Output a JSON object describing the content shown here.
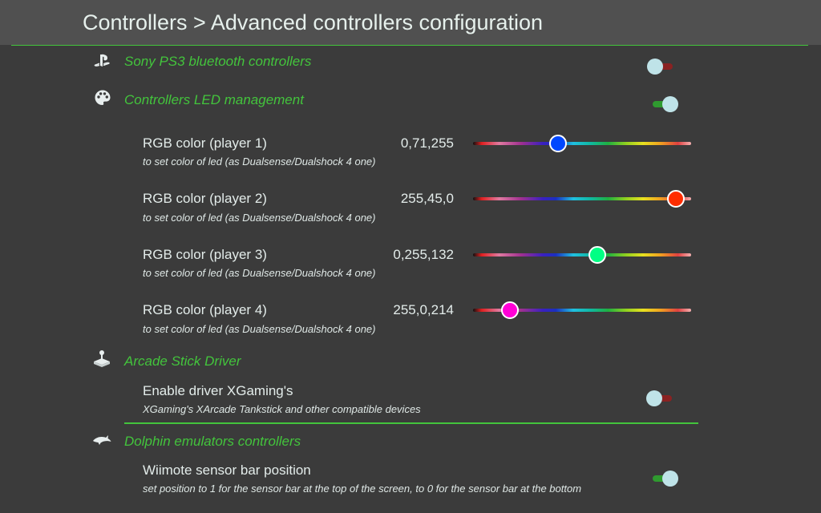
{
  "header": {
    "title": "Controllers > Advanced controllers configuration"
  },
  "sections": {
    "ps3": {
      "title": "Sony PS3 bluetooth controllers",
      "icon": "playstation-icon",
      "toggle": "off"
    },
    "led": {
      "title": "Controllers LED management",
      "icon": "palette-icon",
      "toggle": "on",
      "players": [
        {
          "label": "RGB color (player 1)",
          "value": "0,71,255",
          "desc": "to set color of led (as Dualsense/Dualshock 4 one)",
          "color": "#0047ff",
          "level": 0.39
        },
        {
          "label": "RGB color (player 2)",
          "value": "255,45,0",
          "desc": "to set color of led (as Dualsense/Dualshock 4 one)",
          "color": "#ff2d00",
          "level": 0.93
        },
        {
          "label": "RGB color (player 3)",
          "value": "0,255,132",
          "desc": "to set color of led (as Dualsense/Dualshock 4 one)",
          "color": "#00ff84",
          "level": 0.57
        },
        {
          "label": "RGB color (player 4)",
          "value": "255,0,214",
          "desc": "to set color of led (as Dualsense/Dualshock 4 one)",
          "color": "#ff00d6",
          "level": 0.17
        }
      ]
    },
    "arcade": {
      "title": "Arcade Stick Driver",
      "icon": "arcade-stick-icon",
      "setting": {
        "label": "Enable driver XGaming's",
        "desc": "XGaming's XArcade Tankstick and other compatible devices",
        "toggle": "off"
      }
    },
    "dolphin": {
      "title": "Dolphin emulators controllers",
      "icon": "dolphin-icon",
      "setting": {
        "label": "Wiimote sensor bar position",
        "desc": "set position to 1 for the sensor bar at the top of the screen, to 0 for the sensor bar at the bottom",
        "toggle": "on"
      }
    }
  },
  "colors": {
    "accent": "#43c43c",
    "background": "#3b3b3b",
    "header": "#505050"
  }
}
